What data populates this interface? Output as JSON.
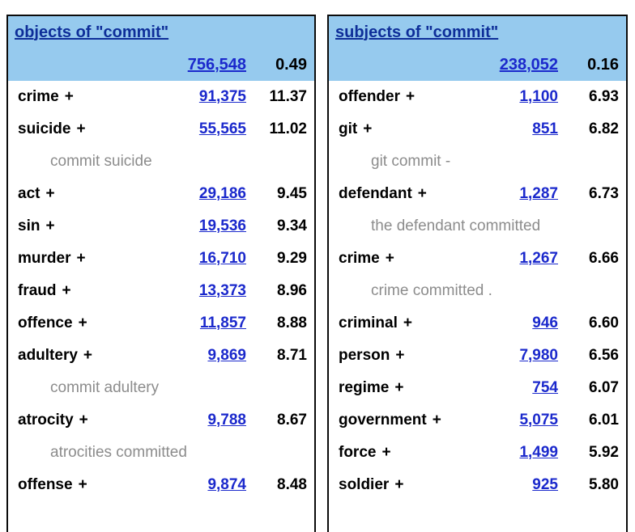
{
  "colors": {
    "header-bg": "#96caee",
    "title-link": "#0e2e99",
    "freq-link": "#1b29cc",
    "example-text": "#8c8c8c",
    "word-text": "#000000",
    "border": "#0b0b0b"
  },
  "plus_label": "+",
  "tables": [
    {
      "title": "objects of \"commit\"",
      "total_freq": "756,548",
      "total_score": "0.49",
      "rows": [
        {
          "type": "word",
          "word": "crime",
          "freq": "91,375",
          "score": "11.37"
        },
        {
          "type": "word",
          "word": "suicide",
          "freq": "55,565",
          "score": "11.02"
        },
        {
          "type": "example",
          "text": "commit suicide"
        },
        {
          "type": "word",
          "word": "act",
          "freq": "29,186",
          "score": "9.45"
        },
        {
          "type": "word",
          "word": "sin",
          "freq": "19,536",
          "score": "9.34"
        },
        {
          "type": "word",
          "word": "murder",
          "freq": "16,710",
          "score": "9.29"
        },
        {
          "type": "word",
          "word": "fraud",
          "freq": "13,373",
          "score": "8.96"
        },
        {
          "type": "word",
          "word": "offence",
          "freq": "11,857",
          "score": "8.88"
        },
        {
          "type": "word",
          "word": "adultery",
          "freq": "9,869",
          "score": "8.71"
        },
        {
          "type": "example",
          "text": "commit adultery"
        },
        {
          "type": "word",
          "word": "atrocity",
          "freq": "9,788",
          "score": "8.67"
        },
        {
          "type": "example",
          "text": "atrocities committed"
        },
        {
          "type": "word",
          "word": "offense",
          "freq": "9,874",
          "score": "8.48"
        }
      ]
    },
    {
      "title": "subjects of \"commit\"",
      "total_freq": "238,052",
      "total_score": "0.16",
      "rows": [
        {
          "type": "word",
          "word": "offender",
          "freq": "1,100",
          "score": "6.93"
        },
        {
          "type": "word",
          "word": "git",
          "freq": "851",
          "score": "6.82"
        },
        {
          "type": "example",
          "text": "git commit -"
        },
        {
          "type": "word",
          "word": "defendant",
          "freq": "1,287",
          "score": "6.73"
        },
        {
          "type": "example",
          "text": "the defendant committed"
        },
        {
          "type": "word",
          "word": "crime",
          "freq": "1,267",
          "score": "6.66"
        },
        {
          "type": "example",
          "text": "crime committed ."
        },
        {
          "type": "word",
          "word": "criminal",
          "freq": "946",
          "score": "6.60"
        },
        {
          "type": "word",
          "word": "person",
          "freq": "7,980",
          "score": "6.56"
        },
        {
          "type": "word",
          "word": "regime",
          "freq": "754",
          "score": "6.07"
        },
        {
          "type": "word",
          "word": "government",
          "freq": "5,075",
          "score": "6.01"
        },
        {
          "type": "word",
          "word": "force",
          "freq": "1,499",
          "score": "5.92"
        },
        {
          "type": "word",
          "word": "soldier",
          "freq": "925",
          "score": "5.80"
        }
      ]
    }
  ]
}
